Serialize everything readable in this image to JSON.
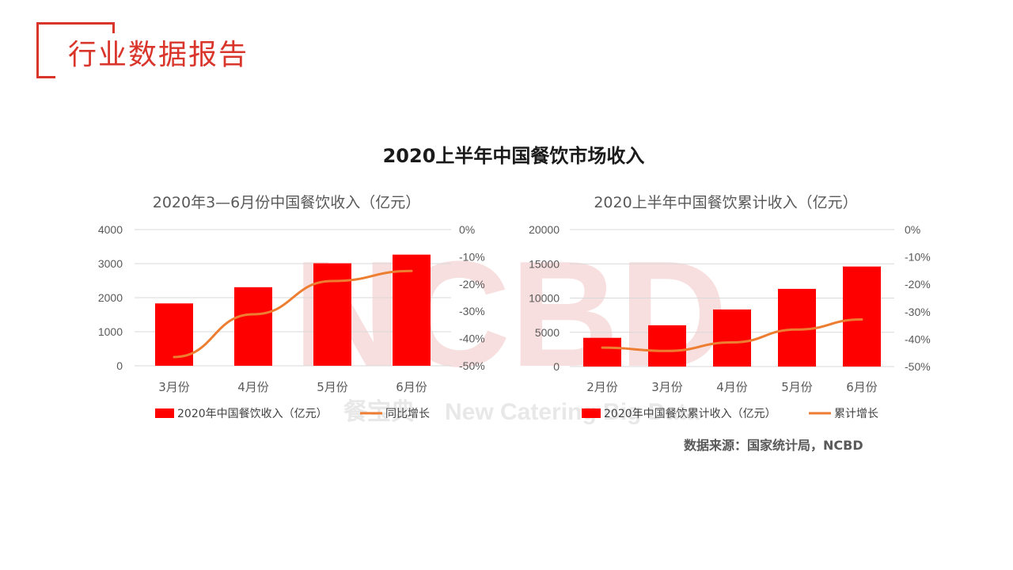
{
  "header": {
    "title": "行业数据报告"
  },
  "main_title": "2020上半年中国餐饮市场收入",
  "watermark": {
    "logo": "NCBD",
    "cn": "餐宝典",
    "en": "New Catering Big Data"
  },
  "source": "数据来源：国家统计局，NCBD",
  "colors": {
    "accent": "#d9352b",
    "bar": "#ff0000",
    "line": "#ed7d31"
  },
  "chart_data": [
    {
      "type": "bar",
      "title": "2020年3—6月份中国餐饮收入（亿元）",
      "categories": [
        "3月份",
        "4月份",
        "5月份",
        "6月份"
      ],
      "series": [
        {
          "name": "2020年中国餐饮收入（亿元）",
          "type": "bar",
          "axis": "left",
          "values": [
            1831,
            2307,
            3010,
            3264
          ]
        },
        {
          "name": "同比增长",
          "type": "line",
          "axis": "right",
          "values": [
            -46.8,
            -31.1,
            -18.9,
            -15.2
          ]
        }
      ],
      "y_left": {
        "min": 0,
        "max": 4000,
        "ticks": [
          "0",
          "1000",
          "2000",
          "3000",
          "4000"
        ]
      },
      "y_right": {
        "min": -50,
        "max": 0,
        "ticks": [
          "-50%",
          "-40%",
          "-30%",
          "-20%",
          "-10%",
          "0%"
        ]
      },
      "grid": true,
      "legend_position": "bottom"
    },
    {
      "type": "bar",
      "title": "2020上半年中国餐饮累计收入（亿元）",
      "categories": [
        "2月份",
        "3月份",
        "4月份",
        "5月份",
        "6月份"
      ],
      "series": [
        {
          "name": "2020年中国餐饮累计收入（亿元）",
          "type": "bar",
          "axis": "left",
          "values": [
            4194,
            6026,
            8333,
            11343,
            14607
          ]
        },
        {
          "name": "累计增长",
          "type": "line",
          "axis": "right",
          "values": [
            -43.1,
            -44.3,
            -41.2,
            -36.5,
            -32.8
          ]
        }
      ],
      "y_left": {
        "min": 0,
        "max": 20000,
        "ticks": [
          "0",
          "5000",
          "10000",
          "15000",
          "20000"
        ]
      },
      "y_right": {
        "min": -50,
        "max": 0,
        "ticks": [
          "-50%",
          "-40%",
          "-30%",
          "-20%",
          "-10%",
          "0%"
        ]
      },
      "grid": true,
      "legend_position": "bottom"
    }
  ]
}
